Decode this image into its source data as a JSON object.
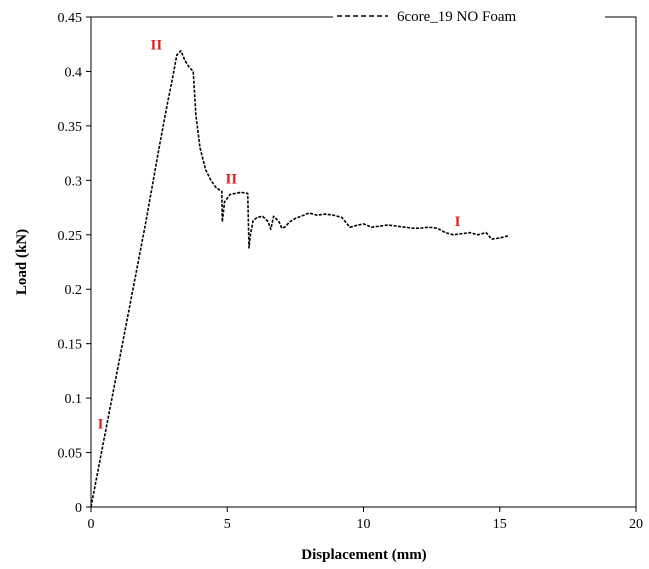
{
  "chart_data": {
    "type": "line",
    "xlabel": "Displacement (mm)",
    "ylabel": "Load (kN)",
    "xlim": [
      0,
      20
    ],
    "ylim": [
      0,
      0.45
    ],
    "x_ticks": [
      0,
      5,
      10,
      15,
      20
    ],
    "x_tick_labels": [
      "0",
      "5",
      "10",
      "15",
      "20"
    ],
    "y_ticks": [
      0,
      0.05,
      0.1,
      0.15,
      0.2,
      0.25,
      0.3,
      0.35,
      0.4,
      0.45
    ],
    "y_tick_labels": [
      "0",
      "0.05",
      "0.1",
      "0.15",
      "0.2",
      "0.25",
      "0.3",
      "0.35",
      "0.4",
      "0.45"
    ],
    "grid": false,
    "legend_position": "top-right",
    "series": [
      {
        "name": "6core_19 NO Foam",
        "style": "dashed",
        "color": "#000000",
        "x": [
          0,
          0.5,
          1.0,
          1.5,
          2.0,
          2.5,
          2.8,
          3.0,
          3.15,
          3.3,
          3.45,
          3.6,
          3.75,
          3.85,
          4.0,
          4.2,
          4.4,
          4.6,
          4.8,
          4.82,
          4.9,
          5.1,
          5.3,
          5.5,
          5.75,
          5.8,
          5.85,
          5.95,
          6.1,
          6.3,
          6.5,
          6.6,
          6.7,
          6.9,
          7.0,
          7.1,
          7.3,
          7.5,
          7.8,
          8.0,
          8.3,
          8.6,
          8.9,
          9.2,
          9.5,
          9.8,
          10.0,
          10.3,
          10.6,
          10.9,
          11.2,
          11.5,
          11.8,
          12.1,
          12.4,
          12.7,
          13.0,
          13.3,
          13.6,
          13.9,
          14.2,
          14.5,
          14.7,
          15.0,
          15.3
        ],
        "y": [
          0,
          0.065,
          0.13,
          0.195,
          0.26,
          0.33,
          0.37,
          0.395,
          0.415,
          0.419,
          0.41,
          0.404,
          0.4,
          0.36,
          0.33,
          0.31,
          0.3,
          0.293,
          0.29,
          0.262,
          0.28,
          0.287,
          0.288,
          0.289,
          0.288,
          0.238,
          0.25,
          0.263,
          0.266,
          0.267,
          0.262,
          0.255,
          0.267,
          0.262,
          0.256,
          0.257,
          0.262,
          0.265,
          0.268,
          0.27,
          0.268,
          0.269,
          0.268,
          0.266,
          0.257,
          0.259,
          0.26,
          0.257,
          0.258,
          0.259,
          0.258,
          0.257,
          0.256,
          0.256,
          0.257,
          0.256,
          0.252,
          0.25,
          0.251,
          0.252,
          0.25,
          0.252,
          0.246,
          0.247,
          0.249
        ]
      }
    ],
    "annotations": [
      {
        "text": "I",
        "x": 0.35,
        "y": 0.072,
        "color": "#e02020"
      },
      {
        "text": "II",
        "x": 2.4,
        "y": 0.42,
        "color": "#e02020"
      },
      {
        "text": "II",
        "x": 5.15,
        "y": 0.297,
        "color": "#e02020"
      },
      {
        "text": "I",
        "x": 13.45,
        "y": 0.258,
        "color": "#e02020"
      }
    ]
  }
}
